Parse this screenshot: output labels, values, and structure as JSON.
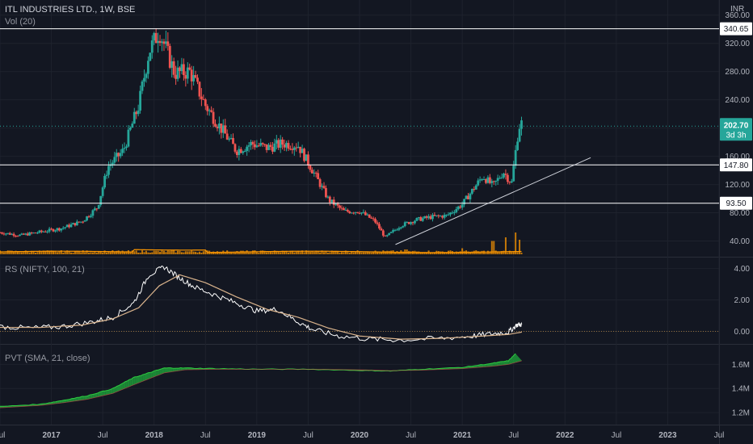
{
  "header": {
    "symbol_line": "ITL INDUSTRIES LTD., 1W, BSE",
    "volume_line": "Vol (20)",
    "currency": "INR"
  },
  "rs_legend": "RS (NIFTY, 100, 21)",
  "pvt_legend": "PVT (SMA, 21, close)",
  "price_badge": {
    "value": "202.70",
    "countdown": "3d 3h"
  },
  "levels": [
    {
      "label": "340.65",
      "value": 340.65
    },
    {
      "label": "147.80",
      "value": 147.8
    },
    {
      "label": "93.50",
      "value": 93.5
    }
  ],
  "colors": {
    "background": "#131722",
    "up": "#26a69a",
    "down": "#ef5350",
    "volume": "#ff9800",
    "volume_ma": "#ff9800",
    "rs_line": "#ffffff",
    "rs_ma": "#d9b38c",
    "pvt_up": "#1e9e3a",
    "pvt_down": "#d84d4d"
  },
  "chart_data": [
    {
      "type": "candlestick",
      "pane": "price",
      "y_ticks": [
        "360.00",
        "320.00",
        "280.00",
        "240.00",
        "200.00",
        "160.00",
        "120.00",
        "80.00",
        "40.00"
      ],
      "ylim": [
        20,
        370
      ],
      "x_ticks": [
        "Jul",
        "2017",
        "Jul",
        "2018",
        "Jul",
        "2019",
        "Jul",
        "2020",
        "Jul",
        "2021",
        "Jul",
        "2022",
        "Jul",
        "2023",
        "Jul"
      ],
      "x_tick_times": [
        2016.5,
        2017.0,
        2017.5,
        2018.0,
        2018.5,
        2019.0,
        2019.5,
        2020.0,
        2020.5,
        2021.0,
        2021.5,
        2022.0,
        2022.5,
        2023.0,
        2023.5
      ],
      "xlim": [
        2016.5,
        2023.5
      ],
      "close_path": [
        [
          2016.5,
          52
        ],
        [
          2016.7,
          48
        ],
        [
          2016.9,
          53
        ],
        [
          2017.1,
          58
        ],
        [
          2017.3,
          68
        ],
        [
          2017.45,
          88
        ],
        [
          2017.55,
          145
        ],
        [
          2017.7,
          168
        ],
        [
          2017.85,
          232
        ],
        [
          2017.95,
          308
        ],
        [
          2018.05,
          338
        ],
        [
          2018.2,
          278
        ],
        [
          2018.35,
          280
        ],
        [
          2018.5,
          232
        ],
        [
          2018.65,
          200
        ],
        [
          2018.8,
          168
        ],
        [
          2018.95,
          178
        ],
        [
          2019.1,
          172
        ],
        [
          2019.25,
          178
        ],
        [
          2019.4,
          176
        ],
        [
          2019.55,
          138
        ],
        [
          2019.7,
          98
        ],
        [
          2019.85,
          82
        ],
        [
          2020.0,
          82
        ],
        [
          2020.15,
          68
        ],
        [
          2020.25,
          45
        ],
        [
          2020.4,
          62
        ],
        [
          2020.55,
          70
        ],
        [
          2020.7,
          74
        ],
        [
          2020.85,
          76
        ],
        [
          2021.0,
          92
        ],
        [
          2021.1,
          112
        ],
        [
          2021.2,
          132
        ],
        [
          2021.3,
          118
        ],
        [
          2021.4,
          138
        ],
        [
          2021.48,
          122
        ],
        [
          2021.55,
          202
        ],
        [
          2021.58,
          207
        ]
      ],
      "trendline": [
        [
          2020.35,
          35
        ],
        [
          2022.25,
          158
        ]
      ]
    },
    {
      "type": "bar",
      "pane": "volume",
      "series_name": "Vol (20)",
      "spikes": [
        [
          2020.45,
          0.2
        ],
        [
          2021.0,
          0.25
        ],
        [
          2021.3,
          0.55
        ],
        [
          2021.42,
          0.7
        ],
        [
          2021.52,
          0.9
        ],
        [
          2021.56,
          0.6
        ]
      ]
    },
    {
      "type": "line",
      "pane": "rs",
      "y_ticks": [
        "4.00",
        "2.00",
        "0.00"
      ],
      "ylim": [
        -0.7,
        4.6
      ],
      "series": [
        {
          "name": "RS",
          "points": [
            [
              2016.5,
              0.3
            ],
            [
              2016.8,
              0.2
            ],
            [
              2017.1,
              0.3
            ],
            [
              2017.4,
              0.6
            ],
            [
              2017.6,
              0.9
            ],
            [
              2017.8,
              1.8
            ],
            [
              2017.95,
              3.6
            ],
            [
              2018.1,
              4.1
            ],
            [
              2018.25,
              3.4
            ],
            [
              2018.4,
              2.8
            ],
            [
              2018.6,
              2.3
            ],
            [
              2018.8,
              1.8
            ],
            [
              2019.0,
              1.3
            ],
            [
              2019.2,
              1.4
            ],
            [
              2019.4,
              0.6
            ],
            [
              2019.55,
              0.1
            ],
            [
              2019.8,
              -0.3
            ],
            [
              2020.1,
              -0.5
            ],
            [
              2020.4,
              -0.55
            ],
            [
              2020.8,
              -0.45
            ],
            [
              2021.1,
              -0.3
            ],
            [
              2021.3,
              -0.15
            ],
            [
              2021.45,
              -0.05
            ],
            [
              2021.53,
              0.4
            ],
            [
              2021.58,
              0.45
            ]
          ]
        },
        {
          "name": "MA",
          "points": [
            [
              2016.5,
              0.25
            ],
            [
              2016.9,
              0.25
            ],
            [
              2017.3,
              0.4
            ],
            [
              2017.6,
              0.8
            ],
            [
              2017.85,
              1.5
            ],
            [
              2018.05,
              2.9
            ],
            [
              2018.25,
              3.6
            ],
            [
              2018.5,
              3.1
            ],
            [
              2018.8,
              2.2
            ],
            [
              2019.1,
              1.4
            ],
            [
              2019.4,
              0.9
            ],
            [
              2019.7,
              0.2
            ],
            [
              2020.0,
              -0.3
            ],
            [
              2020.4,
              -0.5
            ],
            [
              2020.8,
              -0.45
            ],
            [
              2021.2,
              -0.3
            ],
            [
              2021.45,
              -0.2
            ],
            [
              2021.58,
              -0.05
            ]
          ]
        }
      ]
    },
    {
      "type": "area",
      "pane": "pvt",
      "y_ticks": [
        "1.6M",
        "1.4M",
        "1.2M"
      ],
      "ylim": [
        1.1,
        1.75
      ],
      "series": [
        {
          "name": "PVT",
          "points": [
            [
              2016.5,
              1.25
            ],
            [
              2016.9,
              1.27
            ],
            [
              2017.1,
              1.3
            ],
            [
              2017.35,
              1.34
            ],
            [
              2017.6,
              1.4
            ],
            [
              2017.8,
              1.49
            ],
            [
              2017.95,
              1.53
            ],
            [
              2018.1,
              1.57
            ],
            [
              2018.3,
              1.57
            ],
            [
              2018.6,
              1.565
            ],
            [
              2019.0,
              1.56
            ],
            [
              2019.5,
              1.56
            ],
            [
              2020.0,
              1.55
            ],
            [
              2020.3,
              1.545
            ],
            [
              2020.6,
              1.56
            ],
            [
              2021.0,
              1.575
            ],
            [
              2021.3,
              1.61
            ],
            [
              2021.45,
              1.63
            ],
            [
              2021.52,
              1.69
            ],
            [
              2021.58,
              1.68
            ]
          ]
        },
        {
          "name": "SMA",
          "points": [
            [
              2016.5,
              1.24
            ],
            [
              2016.9,
              1.26
            ],
            [
              2017.1,
              1.28
            ],
            [
              2017.35,
              1.31
            ],
            [
              2017.6,
              1.36
            ],
            [
              2017.8,
              1.43
            ],
            [
              2017.95,
              1.48
            ],
            [
              2018.1,
              1.53
            ],
            [
              2018.3,
              1.555
            ],
            [
              2018.6,
              1.56
            ],
            [
              2019.0,
              1.56
            ],
            [
              2019.5,
              1.56
            ],
            [
              2020.0,
              1.555
            ],
            [
              2020.3,
              1.548
            ],
            [
              2020.6,
              1.552
            ],
            [
              2021.0,
              1.565
            ],
            [
              2021.3,
              1.585
            ],
            [
              2021.45,
              1.6
            ],
            [
              2021.58,
              1.63
            ]
          ]
        }
      ]
    }
  ]
}
